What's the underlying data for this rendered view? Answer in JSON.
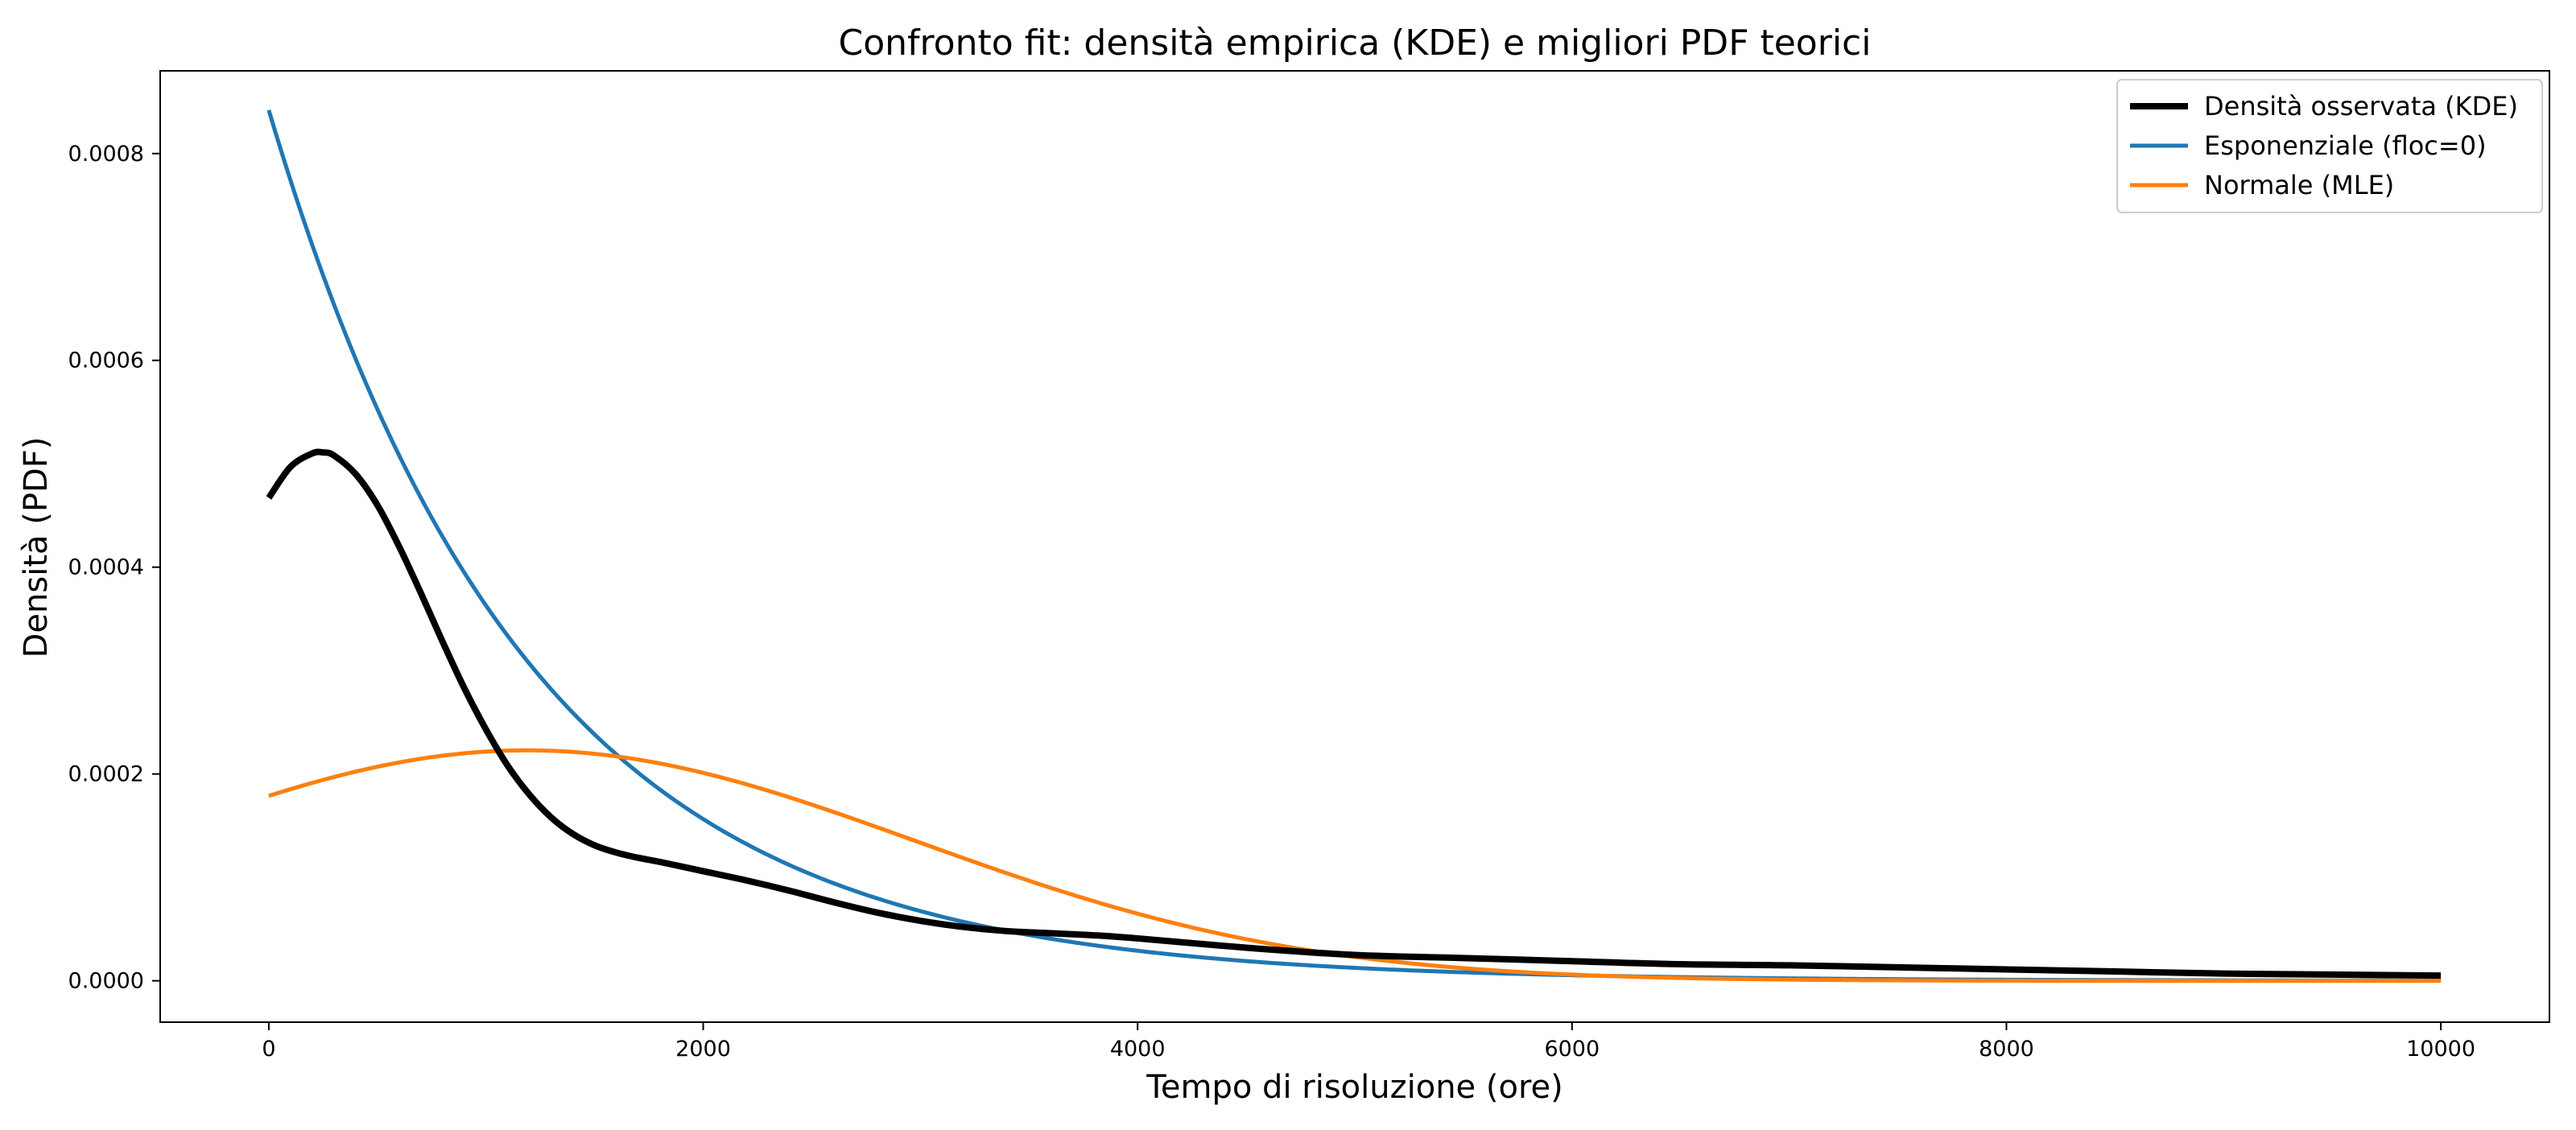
{
  "chart_data": {
    "type": "line",
    "title": "Confronto fit: densità empirica (KDE) e migliori PDF teorici",
    "xlabel": "Tempo di risoluzione (ore)",
    "ylabel": "Densità (PDF)",
    "xlim": [
      -500,
      10500
    ],
    "ylim": [
      -4e-05,
      0.00088
    ],
    "x_ticks": [
      0,
      2000,
      4000,
      6000,
      8000,
      10000
    ],
    "x_tick_labels": [
      "0",
      "2000",
      "4000",
      "6000",
      "8000",
      "10000"
    ],
    "y_ticks": [
      0,
      0.0002,
      0.0004,
      0.0006,
      0.0008
    ],
    "y_tick_labels": [
      "0.0000",
      "0.0002",
      "0.0004",
      "0.0006",
      "0.0008"
    ],
    "grid": false,
    "legend_position": "top-right",
    "series": [
      {
        "name": "Densità osservata (KDE)",
        "color": "#000000",
        "style": "thick",
        "x": [
          0,
          100,
          200,
          250,
          300,
          400,
          500,
          600,
          700,
          800,
          900,
          1000,
          1100,
          1200,
          1300,
          1400,
          1500,
          1600,
          1700,
          1800,
          2000,
          2200,
          2400,
          2600,
          2800,
          3000,
          3200,
          3400,
          3600,
          3800,
          4000,
          4500,
          5000,
          5500,
          6000,
          6500,
          7000,
          7500,
          8000,
          8500,
          9000,
          9500,
          10000
        ],
        "values": [
          0.000467,
          0.000497,
          0.00051,
          0.000511,
          0.000508,
          0.00049,
          0.00046,
          0.00042,
          0.000375,
          0.000328,
          0.000283,
          0.000243,
          0.000208,
          0.00018,
          0.000158,
          0.000142,
          0.000131,
          0.000124,
          0.000119,
          0.000115,
          0.000106,
          9.7e-05,
          8.7e-05,
          7.6e-05,
          6.6e-05,
          5.8e-05,
          5.2e-05,
          4.8e-05,
          4.6e-05,
          4.4e-05,
          4.1e-05,
          3.2e-05,
          2.5e-05,
          2.2e-05,
          1.9e-05,
          1.6e-05,
          1.5e-05,
          1.3e-05,
          1.1e-05,
          9e-06,
          7e-06,
          6e-06,
          5e-06
        ]
      },
      {
        "name": "Esponenziale (floc=0)",
        "color": "#1f77b4",
        "style": "normal",
        "function": "exponential",
        "rate": 0.000842,
        "scale_hours": 1188
      },
      {
        "name": "Normale (MLE)",
        "color": "#ff7f0e",
        "style": "normal",
        "function": "normal",
        "mean": 1188,
        "sd": 1790
      }
    ]
  }
}
